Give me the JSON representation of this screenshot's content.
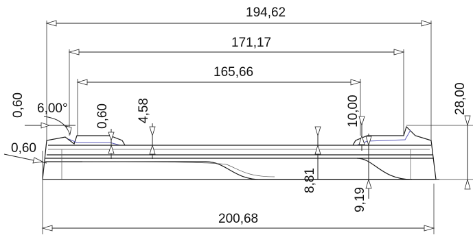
{
  "drawing": {
    "dimensions": {
      "overall_top": "194,62",
      "inner_width": "171,17",
      "seat_width": "165,66",
      "overall_bottom": "200,68",
      "total_height": "28,00",
      "step_10": "10,00",
      "depth_8_81": "8,81",
      "depth_9_19": "9,19",
      "depth_4_58": "4,58",
      "thickness_left_top": "0,60",
      "thickness_left_side": "0,60",
      "thickness_mid": "0,60",
      "draft_angle": "6,00°"
    },
    "colors": {
      "line": "#222222",
      "accent": "#5a5ab8",
      "background": "#ffffff"
    }
  }
}
